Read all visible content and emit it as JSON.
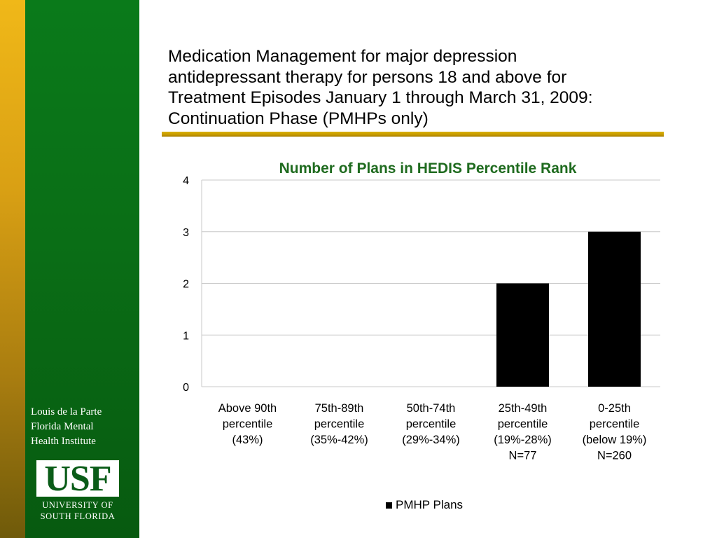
{
  "slide": {
    "title_lines": [
      "Medication Management for major depression",
      "antidepressant therapy for persons 18 and above for",
      "Treatment Episodes January 1 through March 31, 2009:",
      "Continuation Phase (PMHPs only)"
    ]
  },
  "sidebar": {
    "institute_lines": [
      "Louis de la Parte",
      "Florida Mental",
      "Health Institute"
    ],
    "logo_text": "USF",
    "logo_sub_lines": [
      "UNIVERSITY OF",
      "SOUTH FLORIDA"
    ]
  },
  "colors": {
    "green": "#0a6e16",
    "gold": "#d9a014",
    "chart_title": "#1f6b1f",
    "bar": "#000000"
  },
  "chart_data": {
    "type": "bar",
    "title": "Number of Plans in HEDIS Percentile Rank",
    "categories": [
      [
        "Above 90th",
        "percentile",
        "(43%)"
      ],
      [
        "75th-89th",
        "percentile",
        "(35%-42%)"
      ],
      [
        "50th-74th",
        "percentile",
        "(29%-34%)"
      ],
      [
        "25th-49th",
        "percentile",
        "(19%-28%)",
        "N=77"
      ],
      [
        "0-25th",
        "percentile",
        "(below 19%)",
        "N=260"
      ]
    ],
    "series": [
      {
        "name": "PMHP Plans",
        "values": [
          0,
          0,
          0,
          2,
          3
        ]
      }
    ],
    "ylim": [
      0,
      4
    ],
    "yticks": [
      "0",
      "1",
      "2",
      "3",
      "4"
    ],
    "grid": true,
    "legend": "bottom"
  }
}
